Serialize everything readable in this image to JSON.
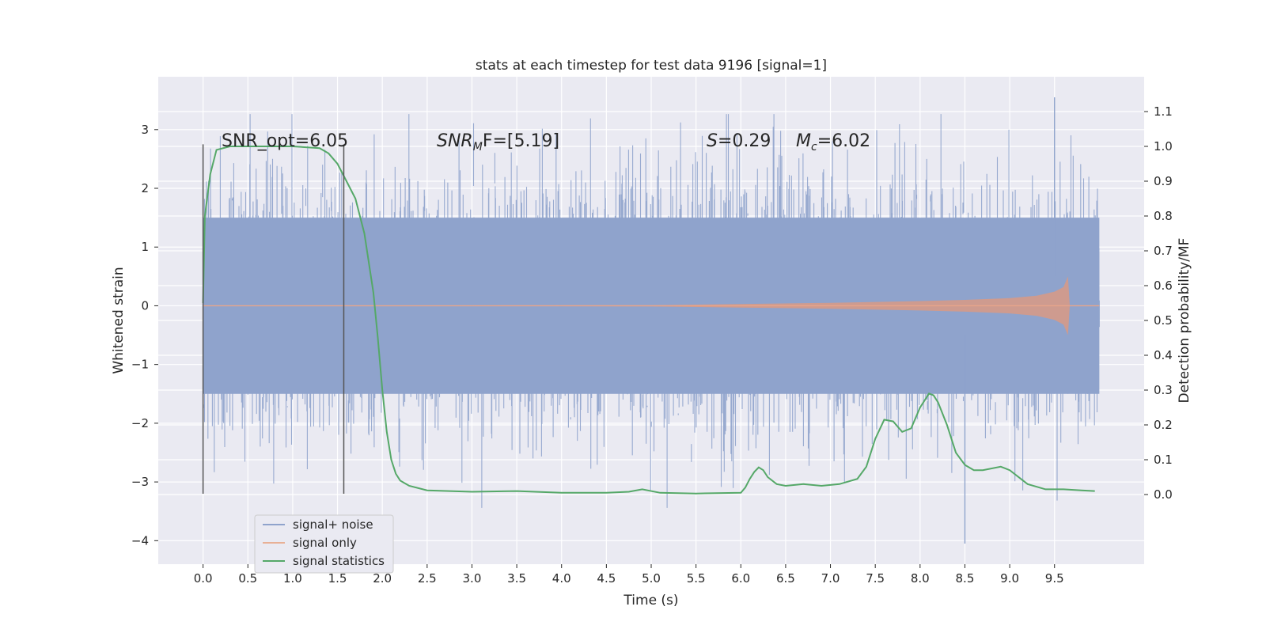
{
  "chart_data": {
    "type": "line",
    "title": "stats at each timestep for test data 9196 [signal=1]",
    "xlabel": "Time (s)",
    "ylabel": "Whitened strain",
    "y2label": "Detection probability/MF",
    "xlim": [
      -0.5,
      10.5
    ],
    "ylim": [
      -4.4,
      3.9
    ],
    "y2lim": [
      -0.2,
      1.2
    ],
    "x_ticks": [
      "0.0",
      "0.5",
      "1.0",
      "1.5",
      "2.0",
      "2.5",
      "3.0",
      "3.5",
      "4.0",
      "4.5",
      "5.0",
      "5.5",
      "6.0",
      "6.5",
      "7.0",
      "7.5",
      "8.0",
      "8.5",
      "9.0",
      "9.5"
    ],
    "x_tick_values": [
      0,
      0.5,
      1,
      1.5,
      2,
      2.5,
      3,
      3.5,
      4,
      4.5,
      5,
      5.5,
      6,
      6.5,
      7,
      7.5,
      8,
      8.5,
      9,
      9.5
    ],
    "y_ticks": [
      "3",
      "2",
      "1",
      "0",
      "−1",
      "−2",
      "−3",
      "−4"
    ],
    "y_tick_values": [
      3,
      2,
      1,
      0,
      -1,
      -2,
      -3,
      -4
    ],
    "y2_ticks": [
      "1.1",
      "1.0",
      "0.9",
      "0.8",
      "0.7",
      "0.6",
      "0.5",
      "0.4",
      "0.3",
      "0.2",
      "0.1",
      "0.0"
    ],
    "y2_tick_values": [
      1.1,
      1.0,
      0.9,
      0.8,
      0.7,
      0.6,
      0.5,
      0.4,
      0.3,
      0.2,
      0.1,
      0.0
    ],
    "grid": true,
    "legend_position": "lower-left",
    "annotations": {
      "snr_opt": "SNR_opt=6.05",
      "snr_mf_main": "SNR",
      "snr_mf_sub": "M",
      "snr_mf_rest": "F=[5.19]",
      "s_main": "S",
      "s_rest": "=0.29",
      "mc_main": "M",
      "mc_sub": "c",
      "mc_rest": "=6.02"
    },
    "vertical_markers_x": [
      0.0,
      1.57
    ],
    "series": [
      {
        "name": "signal+ noise",
        "color": "#8fa3cc",
        "x_range": [
          0,
          10
        ],
        "band_abs": 1.5,
        "max_value": 3.55,
        "min_value": -4.05
      },
      {
        "name": "signal only",
        "color": "#dd8452",
        "x": [
          0,
          5.0,
          6.0,
          7.0,
          8.0,
          8.5,
          9.0,
          9.3,
          9.5,
          9.6,
          9.65,
          9.67,
          10.0
        ],
        "envelope": [
          0,
          0.01,
          0.03,
          0.05,
          0.08,
          0.1,
          0.13,
          0.17,
          0.24,
          0.32,
          0.5,
          0.0,
          0.0
        ]
      },
      {
        "name": "signal statistics",
        "color": "#55a868",
        "x": [
          0.0,
          0.02,
          0.08,
          0.15,
          0.3,
          0.5,
          1.0,
          1.3,
          1.4,
          1.5,
          1.6,
          1.7,
          1.8,
          1.9,
          1.95,
          2.0,
          2.05,
          2.1,
          2.15,
          2.2,
          2.3,
          2.5,
          3.0,
          3.5,
          4.0,
          4.5,
          4.75,
          4.9,
          5.1,
          5.5,
          6.0,
          6.05,
          6.1,
          6.15,
          6.2,
          6.25,
          6.3,
          6.4,
          6.5,
          6.7,
          6.9,
          7.1,
          7.3,
          7.4,
          7.5,
          7.6,
          7.7,
          7.8,
          7.9,
          8.0,
          8.1,
          8.15,
          8.2,
          8.3,
          8.4,
          8.5,
          8.6,
          8.7,
          8.9,
          9.0,
          9.2,
          9.4,
          9.6,
          9.8,
          9.95
        ],
        "y": [
          0.55,
          0.8,
          0.92,
          0.99,
          1.0,
          1.0,
          1.0,
          0.995,
          0.98,
          0.95,
          0.9,
          0.85,
          0.75,
          0.58,
          0.45,
          0.3,
          0.18,
          0.1,
          0.06,
          0.04,
          0.025,
          0.012,
          0.008,
          0.01,
          0.005,
          0.005,
          0.008,
          0.015,
          0.005,
          0.003,
          0.005,
          0.02,
          0.045,
          0.065,
          0.078,
          0.07,
          0.05,
          0.03,
          0.025,
          0.03,
          0.025,
          0.03,
          0.045,
          0.08,
          0.16,
          0.215,
          0.21,
          0.18,
          0.19,
          0.25,
          0.29,
          0.285,
          0.265,
          0.2,
          0.12,
          0.085,
          0.07,
          0.07,
          0.08,
          0.07,
          0.03,
          0.015,
          0.015,
          0.012,
          0.01
        ]
      }
    ]
  }
}
